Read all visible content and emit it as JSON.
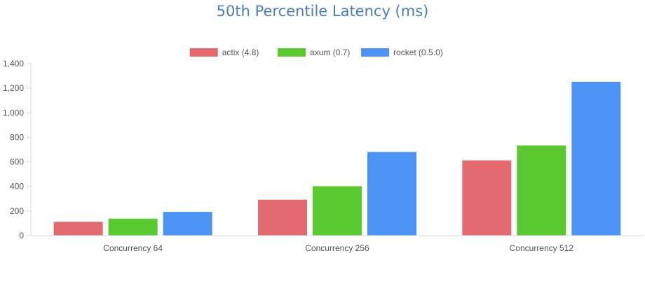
{
  "chart_data": {
    "type": "bar",
    "title": "50th Percentile Latency (ms)",
    "categories": [
      "Concurrency 64",
      "Concurrency 256",
      "Concurrency 512"
    ],
    "series": [
      {
        "name": "actix (4.8)",
        "color": "#e36b6f",
        "values": [
          112,
          292,
          612
        ]
      },
      {
        "name": "axum (0.7)",
        "color": "#5ac92f",
        "values": [
          138,
          402,
          733
        ]
      },
      {
        "name": "rocket (0.5.0)",
        "color": "#4b93f5",
        "values": [
          193,
          681,
          1252
        ]
      }
    ],
    "ylim": [
      0,
      1400
    ],
    "yticks": [
      "0",
      "200",
      "400",
      "600",
      "800",
      "1,000",
      "1,200",
      "1,400"
    ],
    "ytick_values": [
      0,
      200,
      400,
      600,
      800,
      1000,
      1200,
      1400
    ],
    "legend_position": "top-center",
    "grid": false,
    "colors": {
      "title": "#4a7fb5",
      "axis": "#d8d8d8",
      "text": "#555555"
    }
  }
}
